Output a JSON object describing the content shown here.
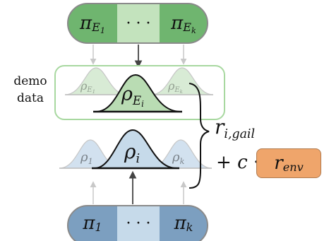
{
  "demo_label": [
    "demo",
    "data"
  ],
  "top_row": {
    "left": {
      "symbol": "π",
      "sub": "E",
      "subsub": "1"
    },
    "middle": "· · ·",
    "right": {
      "symbol": "π",
      "sub": "E",
      "subsub": "k"
    }
  },
  "bottom_row": {
    "left": {
      "symbol": "π",
      "sub": "1"
    },
    "middle": "· · ·",
    "right": {
      "symbol": "π",
      "sub": "k"
    }
  },
  "demo_dists": {
    "left": {
      "symbol": "ρ",
      "sub": "E",
      "subsub": "1"
    },
    "center": {
      "symbol": "ρ",
      "sub": "E",
      "subsub": "i"
    },
    "right": {
      "symbol": "ρ",
      "sub": "E",
      "subsub": "k"
    }
  },
  "policy_dists": {
    "left": {
      "symbol": "ρ",
      "sub": "1"
    },
    "center": {
      "symbol": "ρ",
      "sub": "i"
    },
    "right": {
      "symbol": "ρ",
      "sub": "k"
    }
  },
  "reward": {
    "r_symbol": "r",
    "r_sub": "i,gail",
    "plus": "+",
    "coef": "c",
    "dot": "·",
    "env": "r",
    "env_sub": "env"
  },
  "colors": {
    "green_dark": "#6fb56f",
    "green_light": "#c3e3bd",
    "blue_dark": "#7c9fc0",
    "blue_light": "#c6daea",
    "demo_box": "#a8d8a0",
    "orange": "#efa56b"
  }
}
